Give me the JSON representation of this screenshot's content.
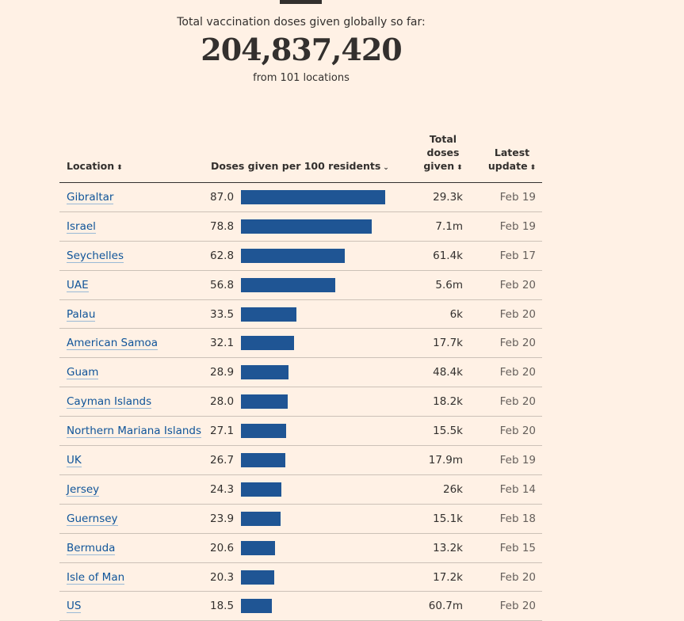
{
  "summary": {
    "caption": "Total vaccination doses given globally so far:",
    "total": "204,837,420",
    "sub": "from 101 locations"
  },
  "columns": {
    "location": "Location",
    "per100": "Doses given per 100 residents",
    "total_line1": "Total",
    "total_line2": "doses",
    "total_line3": "given",
    "date_line1": "Latest",
    "date_line2": "update"
  },
  "sort_icons": {
    "unsorted": "⬍",
    "sorted_desc": "⌄"
  },
  "colors": {
    "bar": "#1f5594",
    "link": "#0f5499",
    "background": "#fff1e5"
  },
  "chart_data": {
    "type": "bar",
    "title": "Doses given per 100 residents",
    "xlim": [
      0,
      87
    ],
    "categories": [
      "Gibraltar",
      "Israel",
      "Seychelles",
      "UAE",
      "Palau",
      "American Samoa",
      "Guam",
      "Cayman Islands",
      "Northern Mariana Islands",
      "UK",
      "Jersey",
      "Guernsey",
      "Bermuda",
      "Isle of Man",
      "US"
    ],
    "values": [
      87.0,
      78.8,
      62.8,
      56.8,
      33.5,
      32.1,
      28.9,
      28.0,
      27.1,
      26.7,
      24.3,
      23.9,
      20.6,
      20.3,
      18.5
    ],
    "rows": [
      {
        "location": "Gibraltar",
        "per100": "87.0",
        "value": 87.0,
        "total": "29.3k",
        "date": "Feb 19"
      },
      {
        "location": "Israel",
        "per100": "78.8",
        "value": 78.8,
        "total": "7.1m",
        "date": "Feb 19"
      },
      {
        "location": "Seychelles",
        "per100": "62.8",
        "value": 62.8,
        "total": "61.4k",
        "date": "Feb 17"
      },
      {
        "location": "UAE",
        "per100": "56.8",
        "value": 56.8,
        "total": "5.6m",
        "date": "Feb 20"
      },
      {
        "location": "Palau",
        "per100": "33.5",
        "value": 33.5,
        "total": "6k",
        "date": "Feb 20"
      },
      {
        "location": "American Samoa",
        "per100": "32.1",
        "value": 32.1,
        "total": "17.7k",
        "date": "Feb 20"
      },
      {
        "location": "Guam",
        "per100": "28.9",
        "value": 28.9,
        "total": "48.4k",
        "date": "Feb 20"
      },
      {
        "location": "Cayman Islands",
        "per100": "28.0",
        "value": 28.0,
        "total": "18.2k",
        "date": "Feb 20"
      },
      {
        "location": "Northern Mariana Islands",
        "per100": "27.1",
        "value": 27.1,
        "total": "15.5k",
        "date": "Feb 20"
      },
      {
        "location": "UK",
        "per100": "26.7",
        "value": 26.7,
        "total": "17.9m",
        "date": "Feb 19"
      },
      {
        "location": "Jersey",
        "per100": "24.3",
        "value": 24.3,
        "total": "26k",
        "date": "Feb 14"
      },
      {
        "location": "Guernsey",
        "per100": "23.9",
        "value": 23.9,
        "total": "15.1k",
        "date": "Feb 18"
      },
      {
        "location": "Bermuda",
        "per100": "20.6",
        "value": 20.6,
        "total": "13.2k",
        "date": "Feb 15"
      },
      {
        "location": "Isle of Man",
        "per100": "20.3",
        "value": 20.3,
        "total": "17.2k",
        "date": "Feb 20"
      },
      {
        "location": "US",
        "per100": "18.5",
        "value": 18.5,
        "total": "60.7m",
        "date": "Feb 20"
      }
    ]
  }
}
